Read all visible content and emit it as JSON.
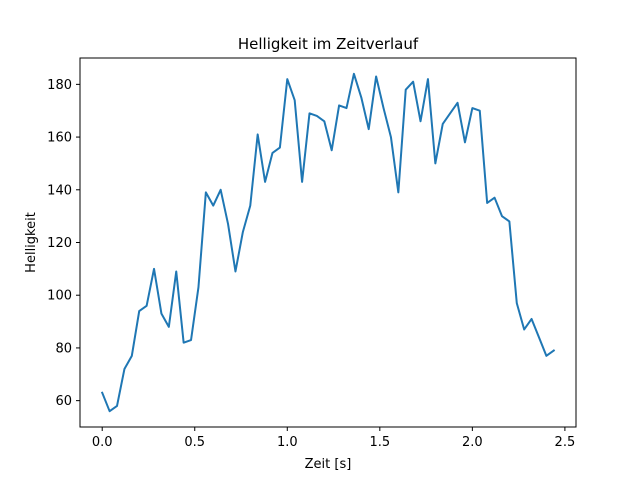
{
  "chart_data": {
    "type": "line",
    "title": "Helligkeit im Zeitverlauf",
    "xlabel": "Zeit [s]",
    "ylabel": "Helligkeit",
    "xlim": [
      -0.12,
      2.56
    ],
    "ylim": [
      50,
      190
    ],
    "xticks": [
      0.0,
      0.5,
      1.0,
      1.5,
      2.0,
      2.5
    ],
    "xtick_labels": [
      "0.0",
      "0.5",
      "1.0",
      "1.5",
      "2.0",
      "2.5"
    ],
    "yticks": [
      60,
      80,
      100,
      120,
      140,
      160,
      180
    ],
    "ytick_labels": [
      "60",
      "80",
      "100",
      "120",
      "140",
      "160",
      "180"
    ],
    "grid": false,
    "color": "#1f77b4",
    "series": [
      {
        "name": "Helligkeit",
        "x": [
          0.0,
          0.04,
          0.08,
          0.12,
          0.16,
          0.2,
          0.24,
          0.28,
          0.32,
          0.36,
          0.4,
          0.44,
          0.48,
          0.52,
          0.56,
          0.6,
          0.64,
          0.68,
          0.72,
          0.76,
          0.8,
          0.84,
          0.88,
          0.92,
          0.96,
          1.0,
          1.04,
          1.08,
          1.12,
          1.16,
          1.2,
          1.24,
          1.28,
          1.32,
          1.36,
          1.4,
          1.44,
          1.48,
          1.52,
          1.56,
          1.6,
          1.64,
          1.68,
          1.72,
          1.76,
          1.8,
          1.84,
          1.88,
          1.92,
          1.96,
          2.0,
          2.04,
          2.08,
          2.12,
          2.16,
          2.2,
          2.24,
          2.28,
          2.32,
          2.36,
          2.4,
          2.44
        ],
        "y": [
          63,
          56,
          58,
          72,
          77,
          94,
          96,
          110,
          93,
          88,
          109,
          82,
          83,
          103,
          139,
          134,
          140,
          127,
          109,
          124,
          134,
          161,
          143,
          154,
          156,
          182,
          174,
          143,
          169,
          168,
          166,
          155,
          172,
          171,
          184,
          175,
          163,
          183,
          171,
          160,
          139,
          178,
          181,
          166,
          182,
          150,
          165,
          169,
          173,
          158,
          171,
          170,
          135,
          137,
          130,
          128,
          97,
          87,
          91,
          84,
          77,
          79
        ]
      }
    ]
  }
}
